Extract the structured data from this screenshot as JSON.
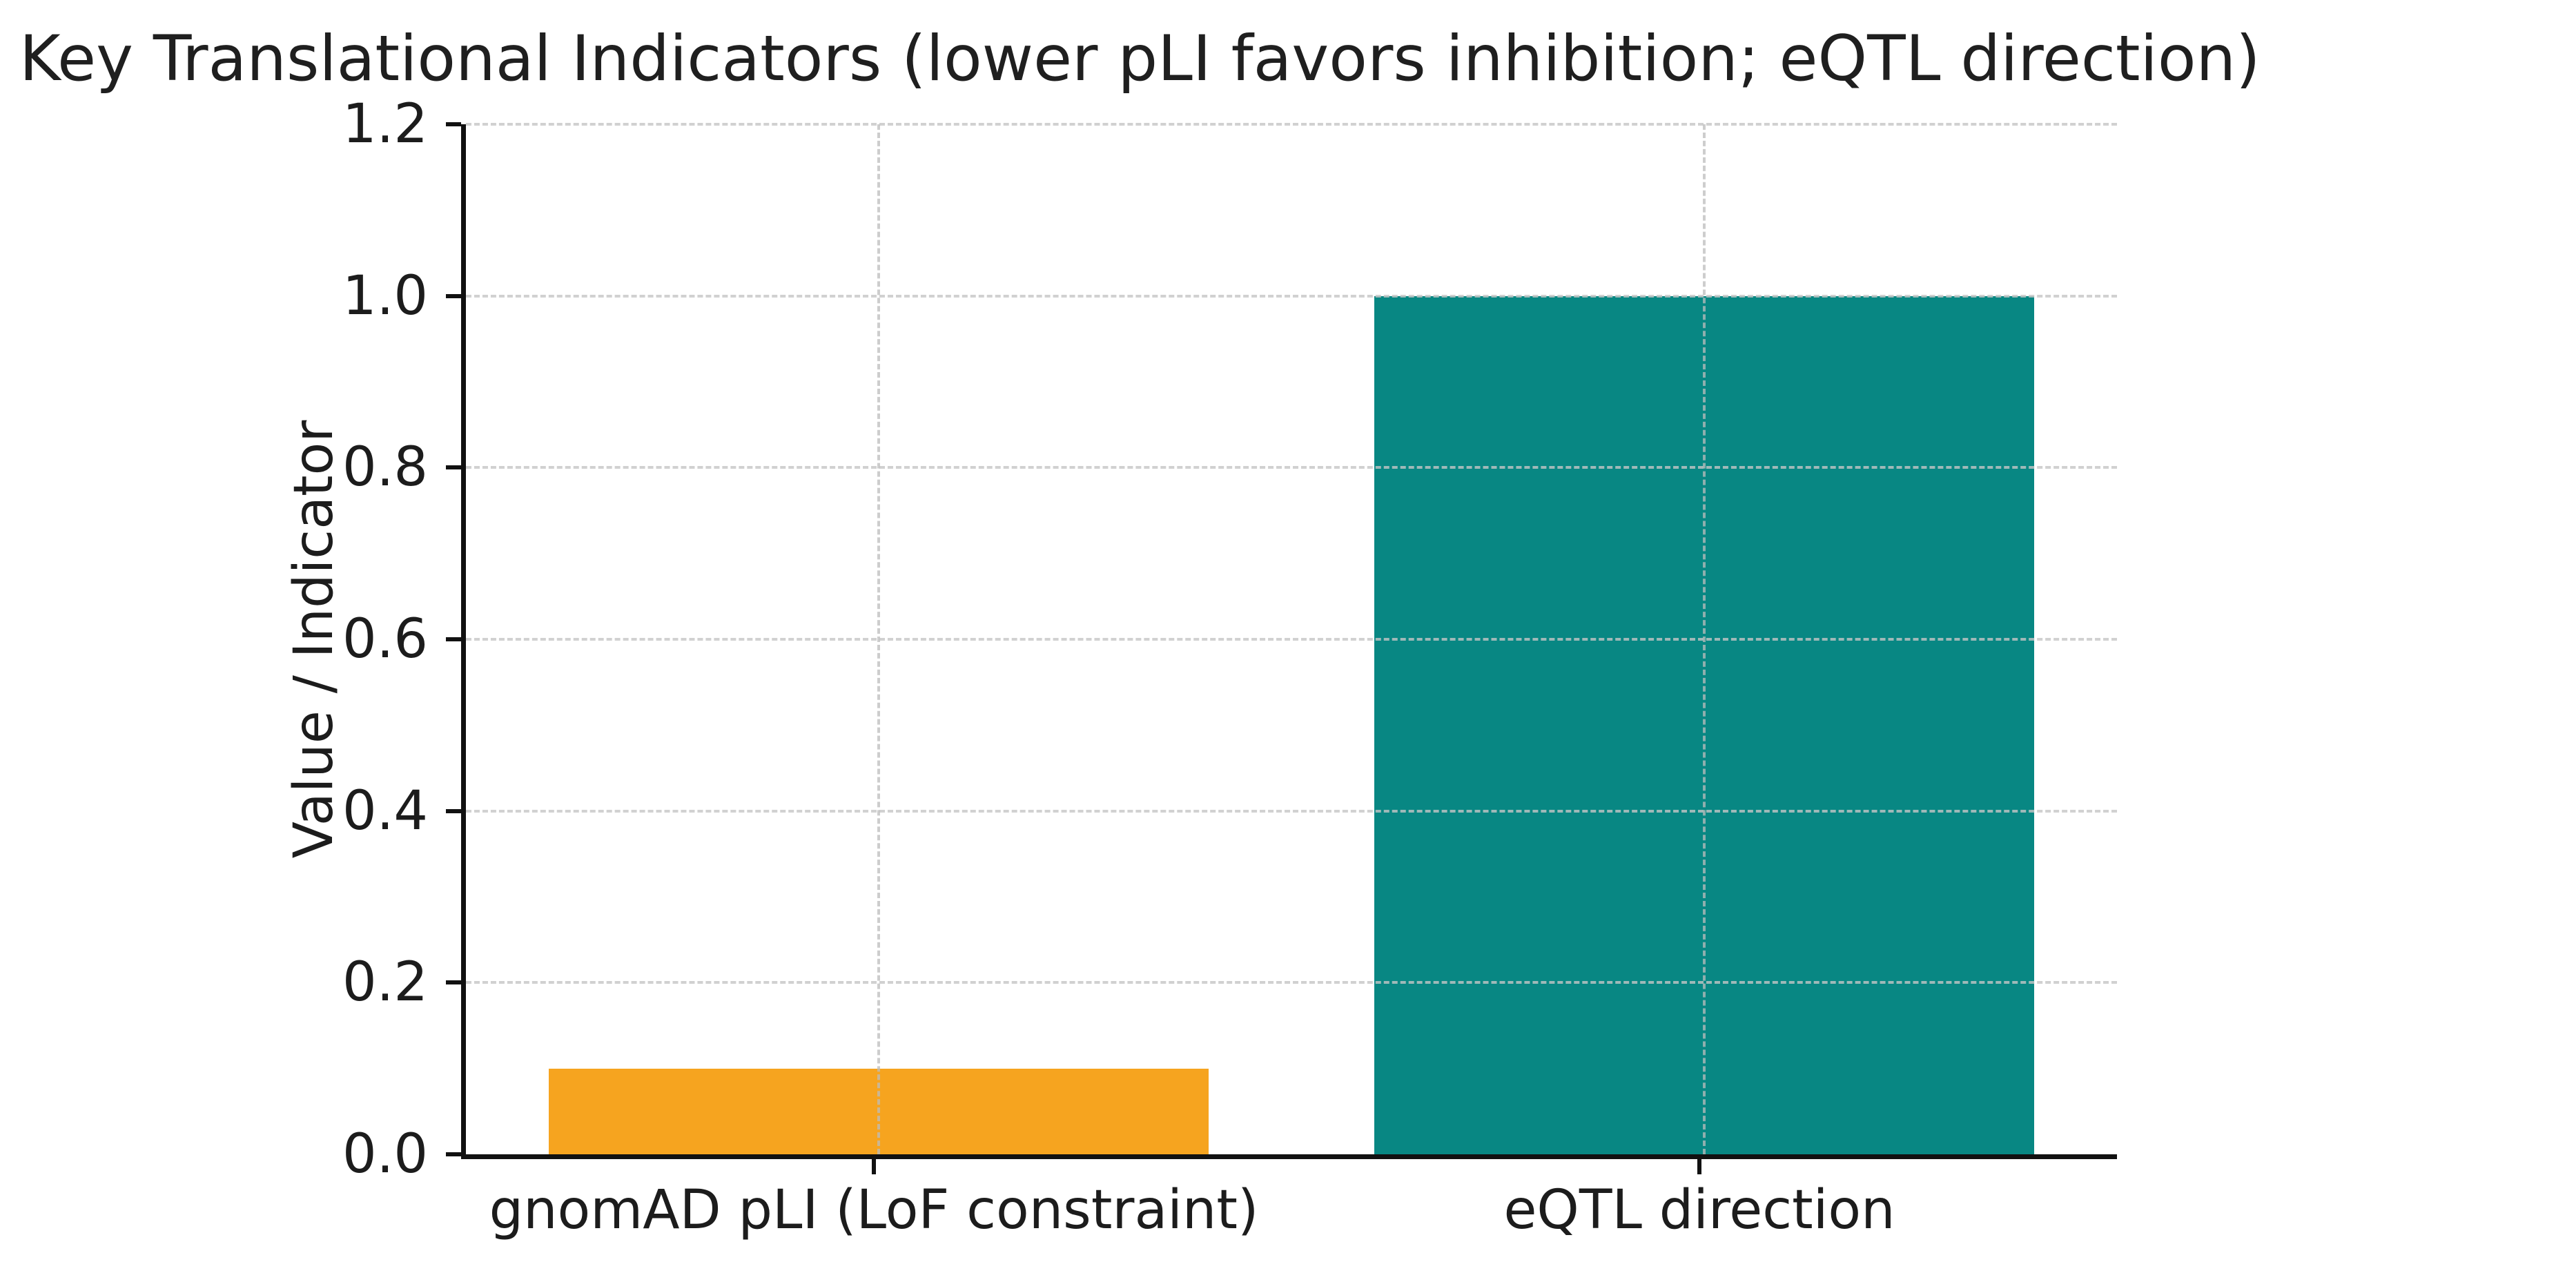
{
  "chart_data": {
    "type": "bar",
    "title": "Key Translational Indicators (lower pLI favors inhibition; eQTL direction)",
    "ylabel": "Value / Indicator",
    "xlabel": "",
    "categories": [
      "gnomAD pLI (LoF constraint)",
      "eQTL direction"
    ],
    "values": [
      0.1,
      1.0
    ],
    "bar_colors": [
      "#f6a41f",
      "#088783"
    ],
    "bar_width_fraction": 0.8,
    "ylim": [
      0.0,
      1.2
    ],
    "ytick_step": 0.2,
    "ytick_labels": [
      "0.0",
      "0.2",
      "0.4",
      "0.6",
      "0.8",
      "1.0",
      "1.2"
    ],
    "grid": {
      "horizontal": true,
      "vertical": true,
      "style": "dashed",
      "color": "#c6c6c6",
      "drawn_above_bars": true
    },
    "legend": "none",
    "spines": [
      "left",
      "bottom"
    ],
    "background": "#ffffff",
    "text_color": "#1c1c1c"
  }
}
